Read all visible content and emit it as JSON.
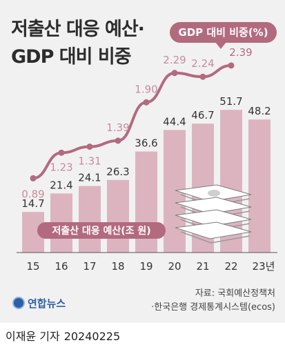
{
  "title_line1": "저출산 대응 예산·",
  "title_line2": "GDP 대비 비중",
  "legend_line_label": "GDP 대비 비중(%)",
  "bar_series_label": "저출산 대응 예산(조 원)",
  "source_line1": "자료: 국회예산정책처",
  "source_line2": "·한국은행 경제통계시스템(ecos)",
  "agency_name": "연합뉴스",
  "reporter": "이재윤 기자",
  "date": "20240225",
  "colors": {
    "bar": "#dcb4bf",
    "line": "#b26a7e",
    "label_bar": "#333333",
    "label_line": "#c98b9b",
    "label_line_last": "#b26a7e",
    "background": "#f1f1f1"
  },
  "chart_data": {
    "type": "bar",
    "categories": [
      "15",
      "16",
      "17",
      "18",
      "19",
      "20",
      "21",
      "22",
      "23년"
    ],
    "series": [
      {
        "name": "저출산 대응 예산(조 원)",
        "type": "bar",
        "values": [
          14.7,
          21.4,
          24.1,
          26.3,
          36.6,
          44.4,
          46.7,
          51.7,
          48.2
        ],
        "labels": [
          "14.7",
          "21.4",
          "24.1",
          "26.3",
          "36.6",
          "44.4",
          "46.7",
          "51.7",
          "48.2"
        ]
      },
      {
        "name": "GDP 대비 비중(%)",
        "type": "line",
        "values": [
          0.89,
          1.23,
          1.31,
          1.39,
          1.9,
          2.29,
          2.24,
          2.39,
          null
        ],
        "labels": [
          "0.89",
          "1.23",
          "1.31",
          "1.39",
          "1.90",
          "2.29",
          "2.24",
          "2.39",
          ""
        ]
      }
    ],
    "bar_scale_max": 55,
    "line_scale": [
      0.6,
      2.6
    ],
    "icon": "money-stack-icon"
  }
}
